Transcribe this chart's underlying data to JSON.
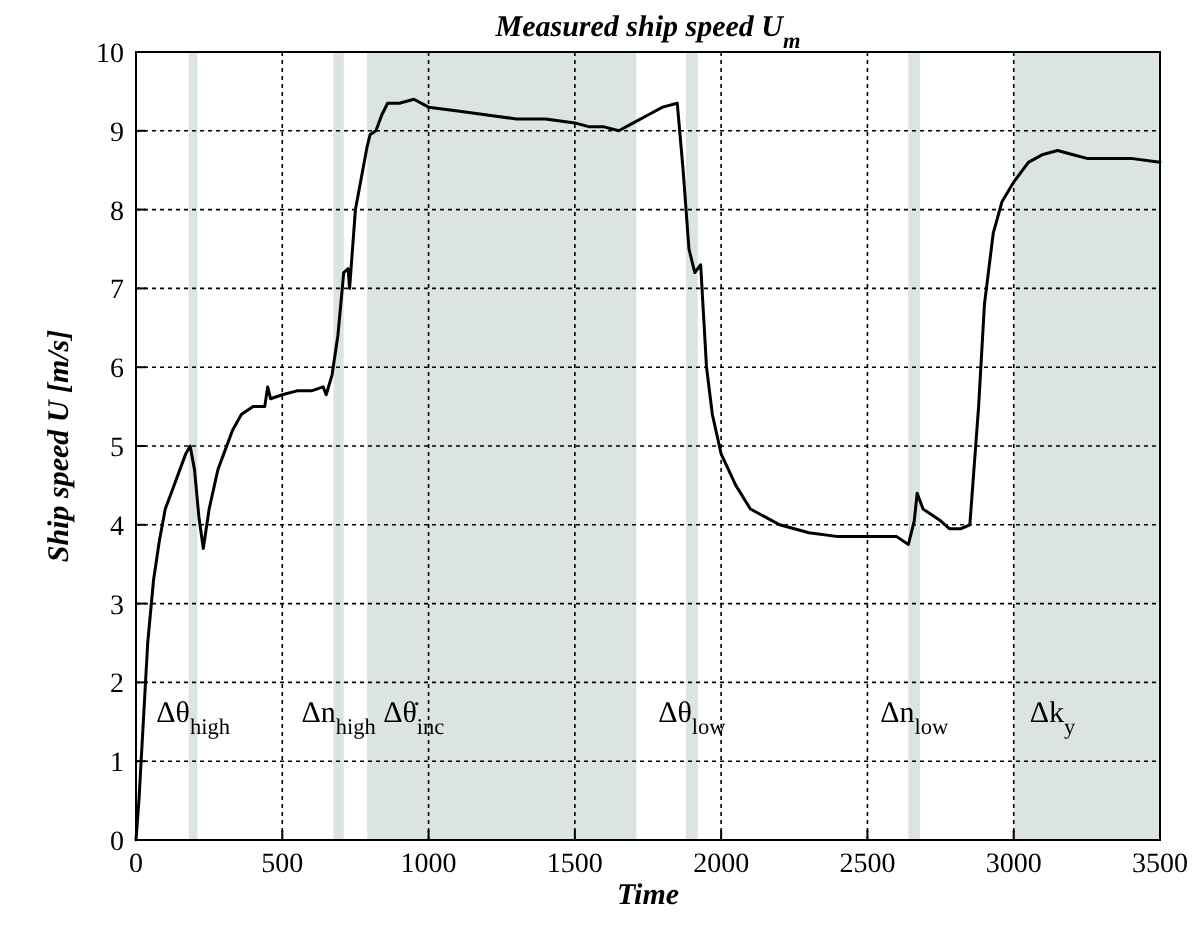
{
  "chart_data": {
    "type": "line",
    "title": "Measured ship speed U$_{m}$",
    "xlabel": "Time",
    "ylabel": "Ship speed U [m/s]",
    "x": [
      0,
      10,
      25,
      40,
      60,
      80,
      100,
      130,
      150,
      170,
      185,
      200,
      215,
      230,
      250,
      280,
      300,
      330,
      360,
      400,
      440,
      450,
      460,
      500,
      550,
      600,
      640,
      650,
      670,
      690,
      710,
      725,
      730,
      750,
      770,
      790,
      800,
      820,
      840,
      860,
      900,
      950,
      1000,
      1100,
      1200,
      1300,
      1400,
      1500,
      1550,
      1600,
      1650,
      1700,
      1750,
      1800,
      1850,
      1870,
      1890,
      1910,
      1930,
      1950,
      1970,
      2000,
      2050,
      2100,
      2150,
      2200,
      2300,
      2400,
      2500,
      2600,
      2640,
      2660,
      2670,
      2690,
      2750,
      2780,
      2820,
      2850,
      2880,
      2900,
      2930,
      2960,
      3000,
      3050,
      3100,
      3150,
      3200,
      3250,
      3300,
      3400,
      3500
    ],
    "series": [
      {
        "color": "#000000",
        "values": [
          0,
          0.5,
          1.5,
          2.5,
          3.3,
          3.8,
          4.2,
          4.5,
          4.7,
          4.9,
          5.0,
          4.7,
          4.1,
          3.7,
          4.2,
          4.7,
          4.9,
          5.2,
          5.4,
          5.5,
          5.5,
          5.75,
          5.6,
          5.65,
          5.7,
          5.7,
          5.75,
          5.65,
          5.9,
          6.4,
          7.2,
          7.25,
          7.0,
          8.0,
          8.4,
          8.8,
          8.95,
          9.0,
          9.2,
          9.35,
          9.35,
          9.4,
          9.3,
          9.25,
          9.2,
          9.15,
          9.15,
          9.1,
          9.05,
          9.05,
          9.0,
          9.1,
          9.2,
          9.3,
          9.35,
          8.5,
          7.5,
          7.2,
          7.3,
          6.0,
          5.4,
          4.9,
          4.5,
          4.2,
          4.1,
          4.0,
          3.9,
          3.85,
          3.85,
          3.85,
          3.75,
          4.05,
          4.4,
          4.2,
          4.05,
          3.95,
          3.95,
          4.0,
          5.5,
          6.8,
          7.7,
          8.1,
          8.35,
          8.6,
          8.7,
          8.75,
          8.7,
          8.65,
          8.65,
          8.65,
          8.6
        ]
      }
    ],
    "xlim": [
      0,
      3500
    ],
    "xticks": [
      0,
      500,
      1000,
      1500,
      2000,
      2500,
      3000,
      3500
    ],
    "ylim": [
      0,
      10
    ],
    "yticks": [
      0,
      1,
      2,
      3,
      4,
      5,
      6,
      7,
      8,
      9,
      10
    ],
    "grid": true,
    "line_style": "solid",
    "marker": "none",
    "bands": [
      {
        "axis": "x",
        "from": 180,
        "to": 210,
        "label": "Δθ$_{high}$",
        "color": "#dce3e3"
      },
      {
        "axis": "x",
        "from": 675,
        "to": 710,
        "label": "Δn$_{high}$",
        "color": "#dce3e3"
      },
      {
        "axis": "x",
        "from": 790,
        "to": 1710,
        "label": "Δθ̇$_{inc}$",
        "color": "#dce3e3"
      },
      {
        "axis": "x",
        "from": 1880,
        "to": 1920,
        "label": "Δθ$_{low}$",
        "color": "#dce3e3"
      },
      {
        "axis": "x",
        "from": 2640,
        "to": 2680,
        "label": "Δn$_{low}$",
        "color": "#dce3e3"
      },
      {
        "axis": "x",
        "from": 3000,
        "to": 3500,
        "label": "Δk$_{y}$",
        "color": "#dce3e3"
      }
    ]
  }
}
